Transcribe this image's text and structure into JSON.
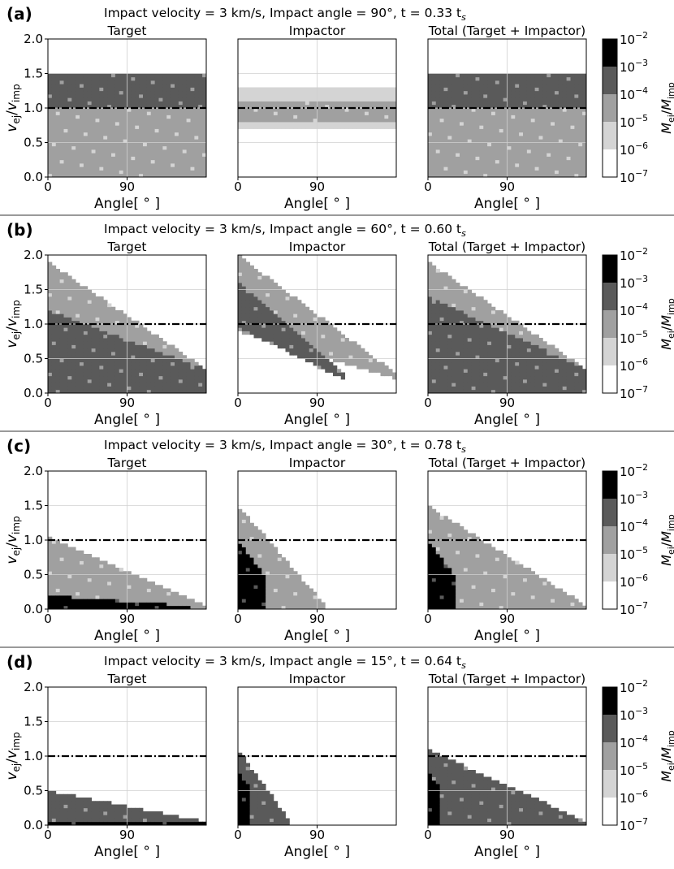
{
  "figure": {
    "colorbar_label_main": "M",
    "colorbar_label_sub": "ej",
    "colorbar_label_den": "M",
    "colorbar_label_den_sub": "imp"
  },
  "colors": {
    "bin_1e-6_to_1e-5": "#d4d4d4",
    "bin_1e-5_to_1e-4": "#a0a0a0",
    "bin_1e-4_to_1e-3": "#5a5a5a",
    "bin_1e-3_to_1e-2": "#000000",
    "separator": "#9a9a9a"
  },
  "chart_data": [
    {
      "panel": "(a)",
      "title": "Impact velocity = 3 km/s, Impact angle =  90°, t =   0.33 t",
      "title_sub": "s",
      "type": "heatmap",
      "subplots": [
        "Target",
        "Impactor",
        "Total (Target + Impactor)"
      ],
      "x_label": "Angle[ ° ]",
      "y_label": "v_ej/v_imp",
      "x_ticks": [
        "0",
        "90"
      ],
      "y_ticks": [
        "0.0",
        "0.5",
        "1.0",
        "1.5",
        "2.0"
      ],
      "ylim": [
        0,
        2
      ],
      "reference_line_y": 1.0,
      "colorbar_ticks": [
        "10-7",
        "10-6",
        "10-5",
        "10-4",
        "10-3",
        "10-2"
      ],
      "colorbar_scale": "log",
      "regions": {
        "Target": [
          {
            "level": 2,
            "y0": 0.0,
            "y1": 1.0,
            "x_end": 180
          },
          {
            "level": 3,
            "y0": 1.0,
            "y1": 1.5,
            "x_end": 180
          }
        ],
        "Impactor": [
          {
            "level": 1,
            "y0": 0.72,
            "y1": 1.3,
            "x_end": 180
          },
          {
            "level": 2,
            "y0": 0.8,
            "y1": 1.12,
            "x_end": 180
          }
        ],
        "Total": [
          {
            "level": 2,
            "y0": 0.0,
            "y1": 1.0,
            "x_end": 180
          },
          {
            "level": 3,
            "y0": 1.0,
            "y1": 1.5,
            "x_end": 180
          }
        ]
      }
    },
    {
      "panel": "(b)",
      "title": "Impact velocity = 3 km/s, Impact angle =  60°, t =   0.60 t",
      "title_sub": "s",
      "type": "heatmap",
      "subplots": [
        "Target",
        "Impactor",
        "Total (Target + Impactor)"
      ],
      "x_label": "Angle[ ° ]",
      "y_label": "v_ej/v_imp",
      "x_ticks": [
        "0",
        "90"
      ],
      "y_ticks": [
        "0.0",
        "0.5",
        "1.0",
        "1.5",
        "2.0"
      ],
      "ylim": [
        0,
        2
      ],
      "reference_line_y": 1.0,
      "colorbar_ticks": [
        "10-7",
        "10-6",
        "10-5",
        "10-4",
        "10-3",
        "10-2"
      ],
      "colorbar_scale": "log",
      "regions": {
        "Target": [
          {
            "level": 2,
            "y_top_at_0": 1.9,
            "y_bottom": 0.0,
            "x_end": 180,
            "y_top_at_end": 0.35
          },
          {
            "level": 3,
            "y_top_at_0": 1.2,
            "y_bottom": 0.0,
            "x_end": 180,
            "y_top_at_end": 0.35
          }
        ],
        "Impactor": [
          {
            "level": 2,
            "y_top_at_0": 2.0,
            "y_bottom_at_0": 0.9,
            "x_end": 180,
            "y_top_at_end": 0.28
          },
          {
            "level": 3,
            "y_top_at_0": 1.6,
            "y_bottom_at_0": 0.95,
            "x_end": 120,
            "y_top_at_end": 0.3
          }
        ],
        "Total": [
          {
            "level": 2,
            "y_top_at_0": 1.9,
            "y_bottom": 0.0,
            "x_end": 180,
            "y_top_at_end": 0.35
          },
          {
            "level": 3,
            "y_top_at_0": 1.4,
            "y_bottom": 0.0,
            "x_end": 180,
            "y_top_at_end": 0.35
          }
        ]
      }
    },
    {
      "panel": "(c)",
      "title": "Impact velocity = 3 km/s, Impact angle =  30°, t =   0.78 t",
      "title_sub": "s",
      "type": "heatmap",
      "subplots": [
        "Target",
        "Impactor",
        "Total (Target + Impactor)"
      ],
      "x_label": "Angle[ ° ]",
      "y_label": "v_ej/v_imp",
      "x_ticks": [
        "0",
        "90"
      ],
      "y_ticks": [
        "0.0",
        "0.5",
        "1.0",
        "1.5",
        "2.0"
      ],
      "ylim": [
        0,
        2
      ],
      "reference_line_y": 1.0,
      "colorbar_ticks": [
        "10-7",
        "10-6",
        "10-5",
        "10-4",
        "10-3",
        "10-2"
      ],
      "colorbar_scale": "log",
      "regions": {
        "Target": [
          {
            "level": 2,
            "y_top_at_0": 1.05,
            "x_end": 180,
            "y_top_at_end": 0.05
          },
          {
            "level": 4,
            "y_top_at_0": 0.2,
            "x_end": 160,
            "y_top_at_end": 0.05
          }
        ],
        "Impactor": [
          {
            "level": 2,
            "y_top_at_0": 1.5,
            "x_end": 100,
            "y_top_at_end": 0.05
          },
          {
            "level": 4,
            "y_top_at_0": 1.0,
            "x_end": 30,
            "y_top_at_end": 0.5
          }
        ],
        "Total": [
          {
            "level": 2,
            "y_top_at_0": 1.5,
            "x_end": 180,
            "y_top_at_end": 0.05
          },
          {
            "level": 4,
            "y_top_at_0": 1.0,
            "x_end": 30,
            "y_top_at_end": 0.5
          }
        ]
      }
    },
    {
      "panel": "(d)",
      "title": "Impact velocity = 3 km/s, Impact angle =  15°, t =   0.64 t",
      "title_sub": "s",
      "type": "heatmap",
      "subplots": [
        "Target",
        "Impactor",
        "Total (Target + Impactor)"
      ],
      "x_label": "Angle[ ° ]",
      "y_label": "v_ej/v_imp",
      "x_ticks": [
        "0",
        "90"
      ],
      "y_ticks": [
        "0.0",
        "0.5",
        "1.0",
        "1.5",
        "2.0"
      ],
      "ylim": [
        0,
        2
      ],
      "reference_line_y": 1.0,
      "colorbar_ticks": [
        "10-7",
        "10-6",
        "10-5",
        "10-4",
        "10-3",
        "10-2"
      ],
      "colorbar_scale": "log",
      "regions": {
        "Target": [
          {
            "level": 3,
            "y_top_at_0": 0.5,
            "x_end": 180,
            "y_top_at_end": 0.05
          },
          {
            "level": 4,
            "y_top_at_0": 0.05,
            "x_end": 180,
            "y_top_at_end": 0.05
          }
        ],
        "Impactor": [
          {
            "level": 3,
            "y_top_at_0": 1.1,
            "x_end": 60,
            "y_top_at_end": 0.05
          },
          {
            "level": 4,
            "y_top_at_0": 0.8,
            "x_end": 15,
            "y_top_at_end": 0.5
          }
        ],
        "Total": [
          {
            "level": 3,
            "y_top_at_0": 1.1,
            "x_end": 180,
            "y_top_at_end": 0.05
          },
          {
            "level": 4,
            "y_top_at_0": 0.8,
            "x_end": 15,
            "y_top_at_end": 0.5
          }
        ]
      }
    }
  ]
}
